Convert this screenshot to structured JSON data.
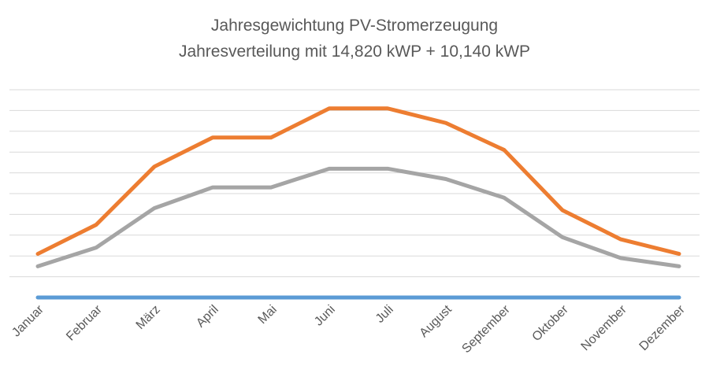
{
  "chart_data": {
    "type": "line",
    "title": "Jahresgewichtung PV-Stromerzeugung",
    "subtitle": "Jahresverteilung mit 14,820 kWP + 10,140 kWP",
    "categories": [
      "Januar",
      "Februar",
      "März",
      "April",
      "Mai",
      "Juni",
      "Juli",
      "August",
      "September",
      "Oktober",
      "November",
      "Dezember"
    ],
    "ylim": [
      0,
      10
    ],
    "gridlines": 10,
    "grid": true,
    "y_tick_labels_visible": false,
    "series": [
      {
        "color": "#5B9BD5",
        "values": [
          0,
          0,
          0,
          0,
          0,
          0,
          0,
          0,
          0,
          0,
          0,
          0
        ]
      },
      {
        "color": "#A5A5A5",
        "values": [
          1.5,
          2.4,
          4.3,
          5.3,
          5.3,
          6.2,
          6.2,
          5.7,
          4.8,
          2.9,
          1.9,
          1.5
        ]
      },
      {
        "color": "#ED7D31",
        "values": [
          2.1,
          3.5,
          6.3,
          7.7,
          7.7,
          9.1,
          9.1,
          8.4,
          7.1,
          4.2,
          2.8,
          2.1
        ]
      }
    ]
  }
}
